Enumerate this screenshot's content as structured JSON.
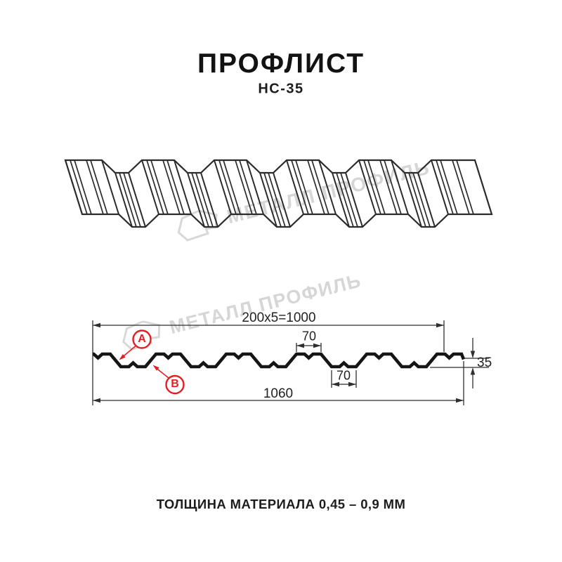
{
  "header": {
    "title": "ПРОФЛИСТ",
    "subtitle": "НС-35"
  },
  "watermark": {
    "text": "МЕТАЛЛ ПРОФИЛЬ",
    "color": "#d6d6d6"
  },
  "drawing": {
    "profile_name": "НС-35",
    "dimensions": {
      "pitch_total": "200x5=1000",
      "top_flange_width": "70",
      "bottom_flange_width": "70",
      "profile_height": "35",
      "overall_width": "1060"
    },
    "callouts": {
      "a": "A",
      "b": "B"
    }
  },
  "footer": {
    "thickness_note": "ТОЛЩИНА МАТЕРИАЛА 0,45 – 0,9 ММ"
  },
  "colors": {
    "accent_red": "#e31e24",
    "line_dark": "#1a1a1a",
    "watermark_gray": "#d6d6d6"
  }
}
